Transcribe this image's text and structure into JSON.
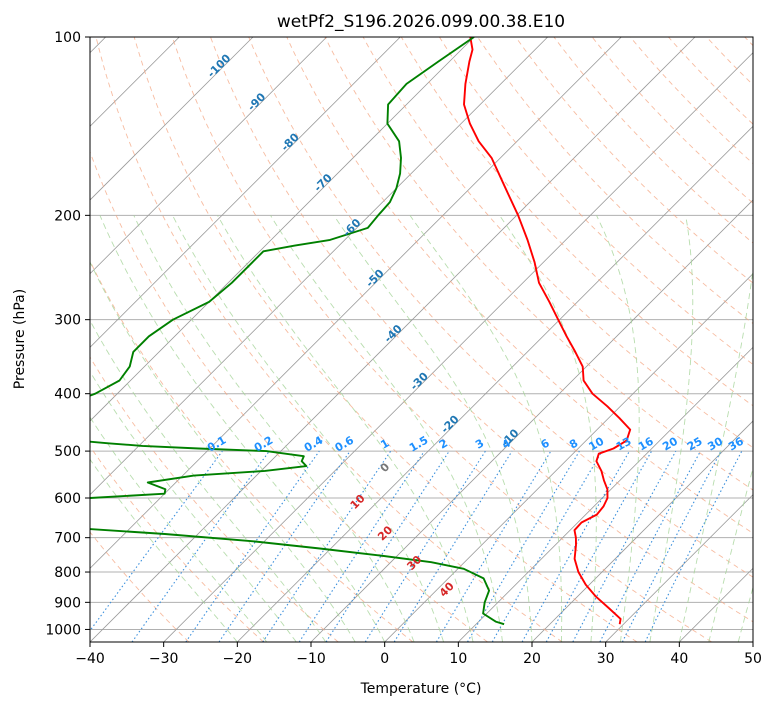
{
  "chart_data": {
    "type": "line",
    "subtype": "skew-t log-p",
    "title": "wetPf2_S196.2026.099.00.38.E10",
    "xlabel": "Temperature (°C)",
    "ylabel": "Pressure (hPa)",
    "xlim": [
      -40,
      50
    ],
    "ylim": [
      1050,
      100
    ],
    "x_ticks": [
      -40,
      -30,
      -20,
      -10,
      0,
      10,
      20,
      30,
      40,
      50
    ],
    "x_tick_labels": [
      "−40",
      "−30",
      "−20",
      "−10",
      "0",
      "10",
      "20",
      "30",
      "40",
      "50"
    ],
    "y_ticks": [
      100,
      200,
      300,
      400,
      500,
      600,
      700,
      800,
      900,
      1000
    ],
    "y_tick_labels": [
      "100",
      "200",
      "300",
      "400",
      "500",
      "600",
      "700",
      "800",
      "900",
      "1000"
    ],
    "colors": {
      "temperature": "#ff0000",
      "dewpoint": "#008000",
      "isotherm": "#9a9a9a",
      "isobar": "#b0b0b0",
      "dry_adiabat": "#f4a582",
      "moist_adiabat": "#a6d49a",
      "mixing_ratio": "#3a8fdc",
      "dry_label": "#d62728",
      "isotherm_label": "#1f77b4",
      "mixing_label": "#1e90ff",
      "zero_label": "#777777"
    },
    "series": [
      {
        "name": "Temperature",
        "color": "#ff0000",
        "pressure": [
          980,
          960,
          920,
          880,
          840,
          800,
          760,
          720,
          700,
          680,
          660,
          640,
          620,
          600,
          580,
          560,
          540,
          520,
          505,
          495,
          480,
          460,
          440,
          420,
          400,
          380,
          360,
          340,
          320,
          300,
          280,
          260,
          240,
          220,
          200,
          180,
          160,
          150,
          140,
          130,
          120,
          110,
          105,
          100
        ],
        "temperature": [
          29.5,
          28.9,
          25.8,
          22.5,
          19.5,
          16.8,
          14.5,
          12.8,
          11.8,
          10.6,
          10.5,
          11.5,
          11.3,
          10.7,
          9.5,
          7.8,
          6.2,
          4.2,
          3.5,
          4.8,
          5.5,
          4.5,
          1.5,
          -1.8,
          -5.5,
          -8.5,
          -10.5,
          -13.5,
          -16.8,
          -20.2,
          -23.8,
          -27.8,
          -31.2,
          -35.2,
          -39.8,
          -45.2,
          -51.2,
          -55.2,
          -58.8,
          -62.2,
          -64.8,
          -67.3,
          -68.5,
          -70.5
        ]
      },
      {
        "name": "Dewpoint",
        "color": "#008000",
        "pressure": [
          980,
          970,
          940,
          900,
          860,
          820,
          790,
          770,
          750,
          730,
          710,
          690,
          675,
          665,
          655,
          645,
          638,
          632,
          626,
          622,
          618,
          610,
          600,
          590,
          580,
          565,
          550,
          540,
          530,
          520,
          510,
          500,
          495,
          490,
          485,
          475,
          460,
          440,
          420,
          400,
          380,
          360,
          340,
          320,
          300,
          280,
          260,
          240,
          230,
          225,
          220,
          210,
          200,
          190,
          180,
          170,
          160,
          150,
          140,
          130,
          120,
          110,
          100
        ],
        "dewpoint": [
          13.8,
          12.3,
          9.5,
          8.2,
          7.2,
          4.8,
          0.8,
          -4.5,
          -12.5,
          -21.5,
          -31.5,
          -44.5,
          -57,
          -64,
          -71,
          -70,
          -70.3,
          -77.5,
          -69.5,
          -66.5,
          -64,
          -64,
          -59.5,
          -50,
          -50.5,
          -53.8,
          -48.5,
          -39.5,
          -34.5,
          -35.8,
          -36.2,
          -42,
          -51.5,
          -59.5,
          -64.5,
          -73.5,
          -75,
          -77,
          -76,
          -73,
          -71.5,
          -72,
          -73.5,
          -73.5,
          -72.5,
          -70,
          -69.5,
          -69.5,
          -69.5,
          -66,
          -62,
          -58.5,
          -58.8,
          -59,
          -60,
          -61.5,
          -63.5,
          -66,
          -70,
          -72.5,
          -72.8,
          -71.5,
          -70
        ]
      }
    ],
    "isotherm_labels": [
      "-100",
      "-90",
      "-80",
      "-70",
      "-60",
      "-50",
      "-40",
      "-30",
      "-20",
      "-10"
    ],
    "mixing_ratio_labels": [
      "0.1",
      "0.2",
      "0.4",
      "0.6",
      "1",
      "1.5",
      "2",
      "3",
      "4",
      "6",
      "8",
      "10",
      "13",
      "16",
      "20",
      "25",
      "30",
      "36"
    ],
    "dry_adiabat_labels": [
      "10",
      "20",
      "30",
      "40"
    ],
    "zero_label": "0"
  }
}
